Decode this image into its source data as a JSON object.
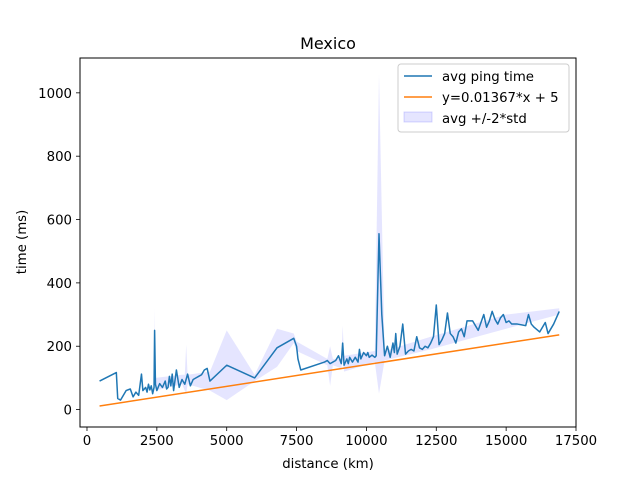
{
  "chart_data": {
    "type": "line",
    "title": "Mexico",
    "xlabel": "distance (km)",
    "ylabel": "time (ms)",
    "xlim": [
      -250,
      17500
    ],
    "ylim": [
      -55,
      1110
    ],
    "xticks": [
      0,
      2500,
      5000,
      7500,
      10000,
      12500,
      15000,
      17500
    ],
    "yticks": [
      0,
      200,
      400,
      600,
      800,
      1000
    ],
    "grid": false,
    "legend_position": "top-right",
    "colors": {
      "avg": "#1f77b4",
      "fit": "#ff7f0e",
      "band_fill": "#0000ff",
      "band_opacity": 0.1
    },
    "series": [
      {
        "name": "avg ping time",
        "kind": "line",
        "points": [
          [
            450,
            90
          ],
          [
            1050,
            117
          ],
          [
            1100,
            35
          ],
          [
            1200,
            30
          ],
          [
            1400,
            60
          ],
          [
            1550,
            65
          ],
          [
            1650,
            40
          ],
          [
            1750,
            55
          ],
          [
            1850,
            45
          ],
          [
            1950,
            112
          ],
          [
            2000,
            60
          ],
          [
            2100,
            70
          ],
          [
            2150,
            55
          ],
          [
            2200,
            80
          ],
          [
            2250,
            62
          ],
          [
            2300,
            75
          ],
          [
            2350,
            50
          ],
          [
            2400,
            70
          ],
          [
            2420,
            250
          ],
          [
            2450,
            80
          ],
          [
            2500,
            60
          ],
          [
            2600,
            82
          ],
          [
            2700,
            70
          ],
          [
            2800,
            90
          ],
          [
            2850,
            65
          ],
          [
            2900,
            70
          ],
          [
            2950,
            105
          ],
          [
            3000,
            75
          ],
          [
            3050,
            112
          ],
          [
            3100,
            60
          ],
          [
            3200,
            125
          ],
          [
            3300,
            70
          ],
          [
            3400,
            95
          ],
          [
            3500,
            80
          ],
          [
            3600,
            112
          ],
          [
            3700,
            75
          ],
          [
            3800,
            95
          ],
          [
            3900,
            100
          ],
          [
            4000,
            105
          ],
          [
            4100,
            110
          ],
          [
            4200,
            125
          ],
          [
            4300,
            130
          ],
          [
            4400,
            90
          ],
          [
            5000,
            140
          ],
          [
            6000,
            100
          ],
          [
            6800,
            195
          ],
          [
            7400,
            225
          ],
          [
            7500,
            200
          ],
          [
            7550,
            160
          ],
          [
            7650,
            125
          ],
          [
            8500,
            150
          ],
          [
            8600,
            155
          ],
          [
            8700,
            145
          ],
          [
            8800,
            150
          ],
          [
            8900,
            155
          ],
          [
            9000,
            170
          ],
          [
            9100,
            145
          ],
          [
            9150,
            210
          ],
          [
            9200,
            140
          ],
          [
            9300,
            160
          ],
          [
            9350,
            145
          ],
          [
            9400,
            165
          ],
          [
            9500,
            150
          ],
          [
            9600,
            165
          ],
          [
            9700,
            150
          ],
          [
            9750,
            190
          ],
          [
            9800,
            160
          ],
          [
            9900,
            180
          ],
          [
            10000,
            170
          ],
          [
            10050,
            180
          ],
          [
            10100,
            165
          ],
          [
            10200,
            172
          ],
          [
            10300,
            165
          ],
          [
            10350,
            170
          ],
          [
            10450,
            555
          ],
          [
            10550,
            300
          ],
          [
            10650,
            170
          ],
          [
            10750,
            200
          ],
          [
            10850,
            165
          ],
          [
            10950,
            210
          ],
          [
            11000,
            180
          ],
          [
            11050,
            240
          ],
          [
            11100,
            175
          ],
          [
            11200,
            200
          ],
          [
            11300,
            270
          ],
          [
            11400,
            175
          ],
          [
            11500,
            185
          ],
          [
            11600,
            190
          ],
          [
            11700,
            185
          ],
          [
            11800,
            230
          ],
          [
            11900,
            195
          ],
          [
            12000,
            190
          ],
          [
            12100,
            200
          ],
          [
            12200,
            195
          ],
          [
            12300,
            210
          ],
          [
            12400,
            230
          ],
          [
            12500,
            330
          ],
          [
            12600,
            205
          ],
          [
            12700,
            220
          ],
          [
            12800,
            240
          ],
          [
            12900,
            305
          ],
          [
            13000,
            240
          ],
          [
            13100,
            230
          ],
          [
            13200,
            210
          ],
          [
            13300,
            245
          ],
          [
            13400,
            255
          ],
          [
            13500,
            230
          ],
          [
            13600,
            280
          ],
          [
            13800,
            280
          ],
          [
            14000,
            250
          ],
          [
            14200,
            300
          ],
          [
            14300,
            260
          ],
          [
            14400,
            280
          ],
          [
            14500,
            310
          ],
          [
            14600,
            285
          ],
          [
            14700,
            270
          ],
          [
            14800,
            290
          ],
          [
            14900,
            300
          ],
          [
            15000,
            275
          ],
          [
            15100,
            280
          ],
          [
            15200,
            270
          ],
          [
            15400,
            270
          ],
          [
            15700,
            265
          ],
          [
            15800,
            300
          ],
          [
            15900,
            270
          ],
          [
            16000,
            260
          ],
          [
            16200,
            245
          ],
          [
            16400,
            275
          ],
          [
            16500,
            240
          ],
          [
            16700,
            270
          ],
          [
            16900,
            310
          ]
        ]
      },
      {
        "name": "y=0.01367*x + 5",
        "kind": "line",
        "points": [
          [
            450,
            11.15
          ],
          [
            16900,
            236.02
          ]
        ]
      },
      {
        "name": "avg +/-2*std",
        "kind": "band",
        "upper": [
          [
            2400,
            100
          ],
          [
            2420,
            320
          ],
          [
            2450,
            100
          ],
          [
            3400,
            110
          ],
          [
            3500,
            110
          ],
          [
            3550,
            205
          ],
          [
            3600,
            110
          ],
          [
            4400,
            120
          ],
          [
            5000,
            250
          ],
          [
            6000,
            110
          ],
          [
            6800,
            255
          ],
          [
            7400,
            240
          ],
          [
            7500,
            215
          ],
          [
            8600,
            160
          ],
          [
            8700,
            200
          ],
          [
            8800,
            160
          ],
          [
            9100,
            160
          ],
          [
            9150,
            265
          ],
          [
            9200,
            170
          ],
          [
            10300,
            185
          ],
          [
            10450,
            1060
          ],
          [
            10650,
            185
          ],
          [
            12300,
            230
          ],
          [
            15000,
            300
          ],
          [
            16900,
            320
          ]
        ],
        "lower": [
          [
            2400,
            40
          ],
          [
            2420,
            180
          ],
          [
            2450,
            60
          ],
          [
            3400,
            80
          ],
          [
            3550,
            50
          ],
          [
            3600,
            80
          ],
          [
            4400,
            60
          ],
          [
            5000,
            30
          ],
          [
            6000,
            90
          ],
          [
            6800,
            135
          ],
          [
            7400,
            210
          ],
          [
            7500,
            185
          ],
          [
            8600,
            140
          ],
          [
            8700,
            75
          ],
          [
            8800,
            140
          ],
          [
            9100,
            130
          ],
          [
            9150,
            155
          ],
          [
            9200,
            120
          ],
          [
            10300,
            150
          ],
          [
            10450,
            50
          ],
          [
            10650,
            155
          ],
          [
            12300,
            190
          ],
          [
            15000,
            255
          ],
          [
            16900,
            300
          ]
        ]
      }
    ]
  }
}
